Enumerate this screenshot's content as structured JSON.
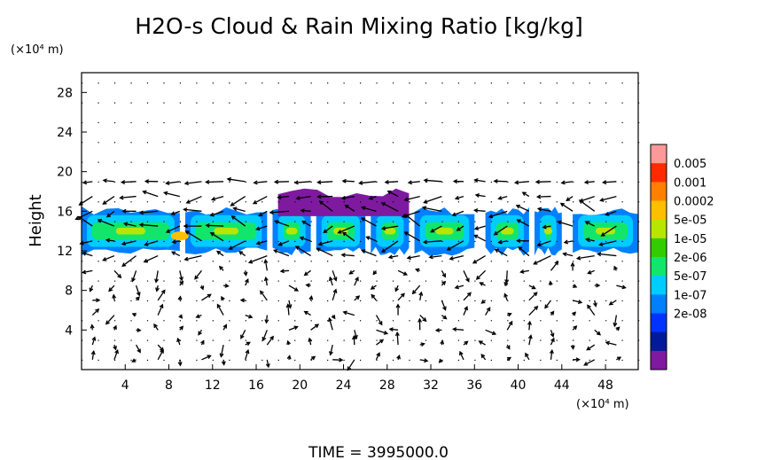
{
  "chart_data": {
    "type": "heatmap",
    "title": "H2O-s Cloud & Rain Mixing Ratio [kg/kg]",
    "ylabel": "Height",
    "xunit": "(×10⁴ m)",
    "yunit": "(×10⁴ m)",
    "xlim": [
      0,
      51
    ],
    "ylim": [
      0,
      30
    ],
    "xticks": [
      4,
      8,
      12,
      16,
      20,
      24,
      28,
      32,
      36,
      40,
      44,
      48
    ],
    "yticks": [
      4,
      8,
      12,
      16,
      20,
      24,
      28
    ],
    "colorbar": {
      "placement": "right",
      "colors": [
        "#ff9999",
        "#ff2a00",
        "#ff7f00",
        "#ffbf00",
        "#b7e600",
        "#33cc00",
        "#12e66a",
        "#00ccff",
        "#0080ff",
        "#0033ff",
        "#001a99",
        "#7f1aa0"
      ],
      "labels": [
        "0.005",
        "0.001",
        "0.0002",
        "5e-05",
        "1e-05",
        "2e-06",
        "5e-07",
        "1e-07",
        "2e-08"
      ]
    },
    "cloud_band": {
      "ybase": 11.5,
      "ytop": 16.5,
      "segments": [
        [
          0,
          9
        ],
        [
          9.5,
          17
        ],
        [
          17.5,
          21
        ],
        [
          21.5,
          26
        ],
        [
          26.5,
          30
        ],
        [
          30.5,
          36
        ],
        [
          37,
          41
        ],
        [
          41.5,
          44
        ],
        [
          45,
          51
        ]
      ],
      "peak_value": "0.0002",
      "peak_location": [
        9,
        13.5
      ]
    },
    "upper_layer": {
      "x": [
        18,
        30
      ],
      "y": [
        15.5,
        18.5
      ],
      "value": "2e-08"
    },
    "wind_arrows": true
  },
  "footer": {
    "time_label": "TIME = 3995000.0"
  }
}
